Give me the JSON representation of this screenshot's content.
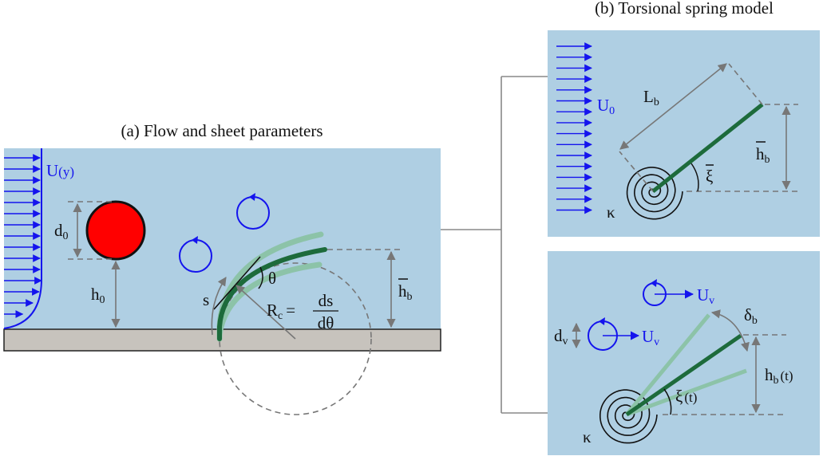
{
  "panel_a": {
    "title": "(a) Flow and sheet parameters",
    "velocity": {
      "symbol": "U",
      "argument": "(y)"
    },
    "diameter": {
      "symbol": "d",
      "subscript": "0"
    },
    "height": {
      "symbol": "h",
      "subscript": "0"
    },
    "arc_length": "s",
    "angle": "θ",
    "curvature": {
      "symbol": "R",
      "subscript": "c",
      "equals": "=",
      "numerator": "ds",
      "denominator": "dθ"
    },
    "sheet_height": {
      "symbol": "h",
      "subscript": "b"
    }
  },
  "panel_b": {
    "title": "(b) Torsional spring model",
    "top": {
      "velocity": {
        "symbol": "U",
        "subscript": "0"
      },
      "length": {
        "symbol": "L",
        "subscript": "b"
      },
      "height": {
        "symbol": "h",
        "subscript": "b"
      },
      "angle": "ξ",
      "stiffness": "κ"
    },
    "bottom": {
      "vortex_velocity_1": {
        "symbol": "U",
        "subscript": "v"
      },
      "vortex_velocity_2": {
        "symbol": "U",
        "subscript": "v"
      },
      "vortex_diameter": {
        "symbol": "d",
        "subscript": "v"
      },
      "deflection": {
        "symbol": "δ",
        "subscript": "b"
      },
      "height": {
        "symbol": "h",
        "subscript": "b",
        "argument": "(t)"
      },
      "angle": {
        "symbol": "ξ",
        "argument": "(t)"
      },
      "stiffness": "κ"
    }
  }
}
